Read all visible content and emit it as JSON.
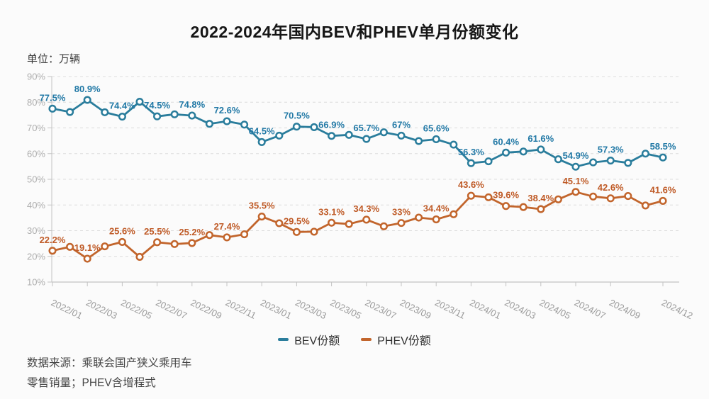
{
  "title": "2022-2024年国内BEV和PHEV单月份额变化",
  "unit_label": "单位：万辆",
  "legend": {
    "items": [
      {
        "label": "BEV份额",
        "color": "#2a7d9c"
      },
      {
        "label": "PHEV份额",
        "color": "#c2652c"
      }
    ]
  },
  "source_note": {
    "line1": "数据来源：乘联会国产狭义乘用车",
    "line2": "零售销量；PHEV含增程式"
  },
  "colors": {
    "bev_line": "#2a7d9c",
    "bev_label": "#2279a6",
    "phev_line": "#c2652c",
    "phev_label": "#bf5a26",
    "grid": "#dcdcdc",
    "axis": "#c3c3c3",
    "y_tick_text": "#aeaeae",
    "x_tick_text": "#9a9a9a",
    "marker_fill": "#ffffff",
    "background": "#fbfbfb"
  },
  "chart_data": {
    "type": "line",
    "title": "2022-2024年国内BEV和PHEV单月份额变化",
    "xlabel": "",
    "ylabel": "",
    "ylim": [
      10,
      90
    ],
    "grid": "horizontal-dashed",
    "legend_position": "bottom-center",
    "x": [
      "2022/01",
      "2022/02",
      "2022/03",
      "2022/04",
      "2022/05",
      "2022/06",
      "2022/07",
      "2022/08",
      "2022/09",
      "2022/10",
      "2022/11",
      "2022/12",
      "2023/01",
      "2023/02",
      "2023/03",
      "2023/04",
      "2023/05",
      "2023/06",
      "2023/07",
      "2023/08",
      "2023/09",
      "2023/10",
      "2023/11",
      "2023/12",
      "2024/01",
      "2024/02",
      "2024/03",
      "2024/04",
      "2024/05",
      "2024/06",
      "2024/07",
      "2024/08",
      "2024/09",
      "2024/10",
      "2024/11",
      "2024/12"
    ],
    "x_ticks": {
      "indices": [
        0,
        2,
        4,
        6,
        8,
        10,
        12,
        14,
        16,
        18,
        20,
        22,
        24,
        26,
        28,
        30,
        32,
        35
      ],
      "labels": [
        "2022/01",
        "2022/03",
        "2022/05",
        "2022/07",
        "2022/09",
        "2022/11",
        "2023/01",
        "2023/03",
        "2023/05",
        "2023/07",
        "2023/09",
        "2023/11",
        "2024/01",
        "2024/03",
        "2024/05",
        "2024/07",
        "2024/09",
        "2024/12"
      ]
    },
    "y_ticks": [
      {
        "v": 90,
        "label": "90%"
      },
      {
        "v": 80,
        "label": "80%"
      },
      {
        "v": 70,
        "label": "70%"
      },
      {
        "v": 60,
        "label": "60%"
      },
      {
        "v": 50,
        "label": "50%"
      },
      {
        "v": 40,
        "label": "40%"
      },
      {
        "v": 30,
        "label": "30%"
      },
      {
        "v": 20,
        "label": "20%"
      },
      {
        "v": 10,
        "label": "10%"
      }
    ],
    "series": [
      {
        "name": "BEV份额",
        "color": "#2a7d9c",
        "label_color": "#2279a6",
        "values": [
          77.5,
          76.2,
          80.9,
          76.1,
          74.4,
          80.2,
          74.5,
          75.3,
          74.8,
          71.6,
          72.6,
          71.3,
          64.5,
          67.0,
          70.5,
          70.3,
          66.9,
          67.3,
          65.7,
          68.3,
          67.0,
          64.9,
          65.6,
          63.5,
          56.3,
          57.0,
          60.4,
          60.8,
          61.6,
          57.8,
          54.9,
          56.6,
          57.3,
          56.4,
          60.0,
          58.5
        ],
        "labels": [
          "77.5%",
          null,
          "80.9%",
          null,
          "74.4%",
          null,
          "74.5%",
          null,
          "74.8%",
          null,
          "72.6%",
          null,
          "64.5%",
          null,
          "70.5%",
          null,
          "66.9%",
          null,
          "65.7%",
          null,
          "67%",
          null,
          "65.6%",
          null,
          "56.3%",
          null,
          "60.4%",
          null,
          "61.6%",
          null,
          "54.9%",
          null,
          "57.3%",
          null,
          null,
          "58.5%"
        ]
      },
      {
        "name": "PHEV份额",
        "color": "#c2652c",
        "label_color": "#bf5a26",
        "values": [
          22.2,
          23.7,
          19.1,
          23.9,
          25.6,
          19.8,
          25.5,
          24.8,
          25.2,
          28.3,
          27.4,
          28.6,
          35.5,
          32.9,
          29.5,
          29.6,
          33.1,
          32.6,
          34.3,
          31.7,
          33.0,
          35.1,
          34.4,
          36.4,
          43.6,
          43.0,
          39.6,
          39.2,
          38.4,
          42.2,
          45.1,
          43.3,
          42.6,
          43.5,
          39.8,
          41.6
        ],
        "labels": [
          "22.2%",
          null,
          "19.1%",
          null,
          "25.6%",
          null,
          "25.5%",
          null,
          "25.2%",
          null,
          "27.4%",
          null,
          "35.5%",
          null,
          "29.5%",
          null,
          "33.1%",
          null,
          "34.3%",
          null,
          "33%",
          null,
          "34.4%",
          null,
          "43.6%",
          null,
          "39.6%",
          null,
          "38.4%",
          null,
          "45.1%",
          null,
          "42.6%",
          null,
          null,
          "41.6%"
        ]
      }
    ]
  }
}
